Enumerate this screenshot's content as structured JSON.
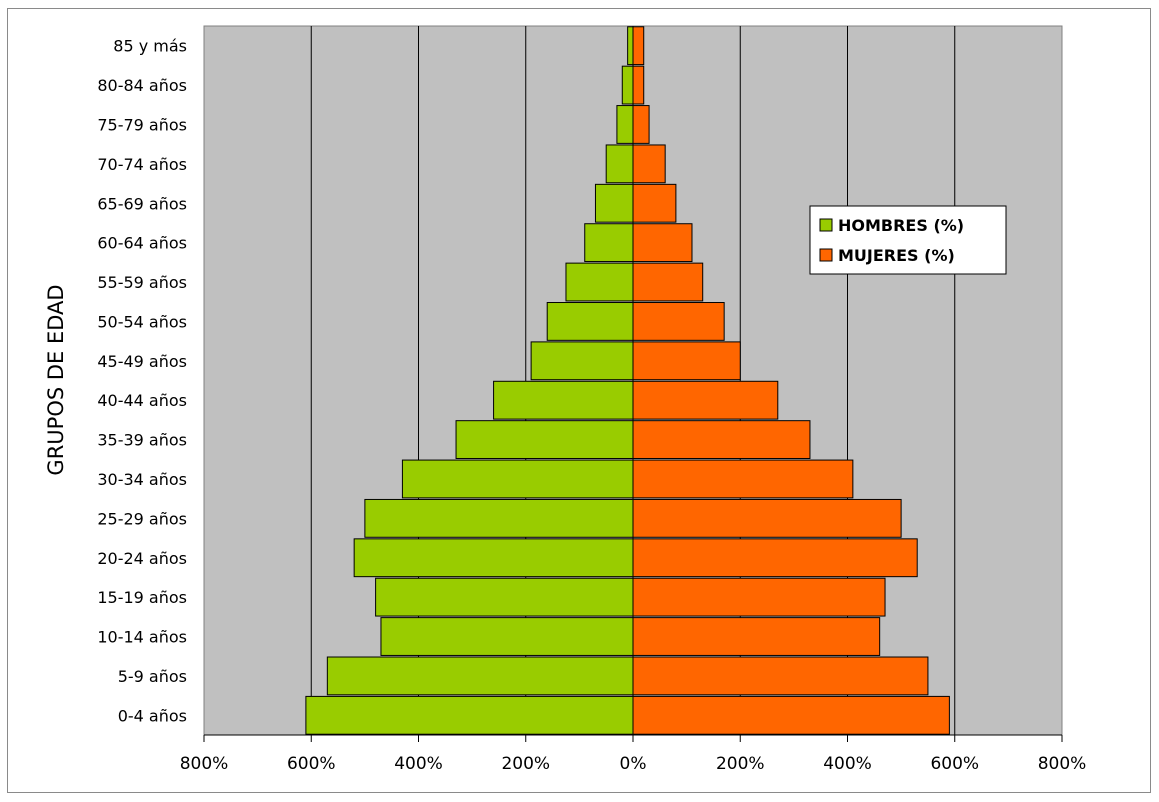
{
  "chart_data": {
    "type": "bar",
    "orientation": "horizontal",
    "subtype": "population-pyramid",
    "categories": [
      "0-4 años",
      "5-9 años",
      "10-14 años",
      "15-19 años",
      "20-24 años",
      "25-29 años",
      "30-34 años",
      "35-39 años",
      "40-44 años",
      "45-49 años",
      "50-54 años",
      "55-59 años",
      "60-64 años",
      "65-69 años",
      "70-74 años",
      "75-79 años",
      "80-84 años",
      "85 y más"
    ],
    "series": [
      {
        "name": "HOMBRES (%)",
        "color": "#99cc00",
        "values": [
          610,
          570,
          470,
          480,
          520,
          500,
          430,
          330,
          260,
          190,
          160,
          125,
          90,
          70,
          50,
          30,
          20,
          10
        ]
      },
      {
        "name": "MUJERES (%)",
        "color": "#ff6600",
        "values": [
          590,
          550,
          460,
          470,
          530,
          500,
          410,
          330,
          270,
          200,
          170,
          130,
          110,
          80,
          60,
          30,
          20,
          20
        ]
      }
    ],
    "title": "",
    "xlabel": "",
    "ylabel": "GRUPOS DE EDAD",
    "xlim": [
      -800,
      800
    ],
    "xticks": [
      -800,
      -600,
      -400,
      -200,
      0,
      200,
      400,
      600,
      800
    ],
    "xtick_labels": [
      "800%",
      "600%",
      "400%",
      "200%",
      "0%",
      "200%",
      "400%",
      "600%",
      "800%"
    ],
    "grid": "vertical",
    "plot_background": "#c0c0c0",
    "legend_position": "right"
  }
}
